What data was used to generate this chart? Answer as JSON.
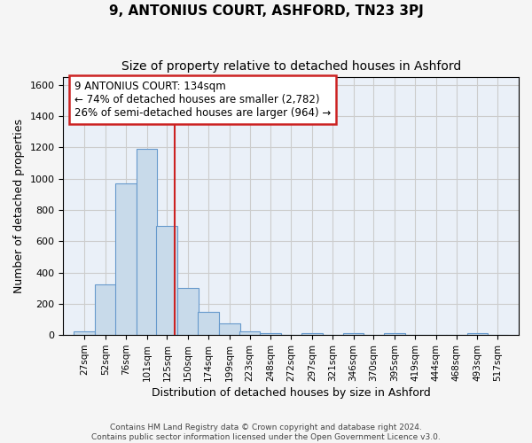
{
  "title": "9, ANTONIUS COURT, ASHFORD, TN23 3PJ",
  "subtitle": "Size of property relative to detached houses in Ashford",
  "xlabel": "Distribution of detached houses by size in Ashford",
  "ylabel": "Number of detached properties",
  "bar_fill_color": "#c8daea",
  "bar_edge_color": "#6699cc",
  "background_color": "#eaf0f8",
  "grid_color": "#d0d8e8",
  "fig_bg_color": "#f5f5f5",
  "red_line_x": 134,
  "annotation_text": "9 ANTONIUS COURT: 134sqm\n← 74% of detached houses are smaller (2,782)\n26% of semi-detached houses are larger (964) →",
  "annotation_box_facecolor": "#ffffff",
  "annotation_box_edgecolor": "#cc2222",
  "categories": [
    "27sqm",
    "52sqm",
    "76sqm",
    "101sqm",
    "125sqm",
    "150sqm",
    "174sqm",
    "199sqm",
    "223sqm",
    "248sqm",
    "272sqm",
    "297sqm",
    "321sqm",
    "346sqm",
    "370sqm",
    "395sqm",
    "419sqm",
    "444sqm",
    "468sqm",
    "493sqm",
    "517sqm"
  ],
  "bin_width": 25,
  "tick_positions": [
    27,
    52,
    76,
    101,
    125,
    150,
    174,
    199,
    223,
    248,
    272,
    297,
    321,
    346,
    370,
    395,
    419,
    444,
    468,
    493,
    517
  ],
  "values": [
    25,
    325,
    970,
    1190,
    700,
    300,
    150,
    75,
    25,
    15,
    0,
    10,
    0,
    10,
    0,
    10,
    0,
    0,
    0,
    10,
    0
  ],
  "ylim": [
    0,
    1650
  ],
  "xlim": [
    2,
    542
  ],
  "yticks": [
    0,
    200,
    400,
    600,
    800,
    1000,
    1200,
    1400,
    1600
  ],
  "footer_text": "Contains HM Land Registry data © Crown copyright and database right 2024.\nContains public sector information licensed under the Open Government Licence v3.0."
}
